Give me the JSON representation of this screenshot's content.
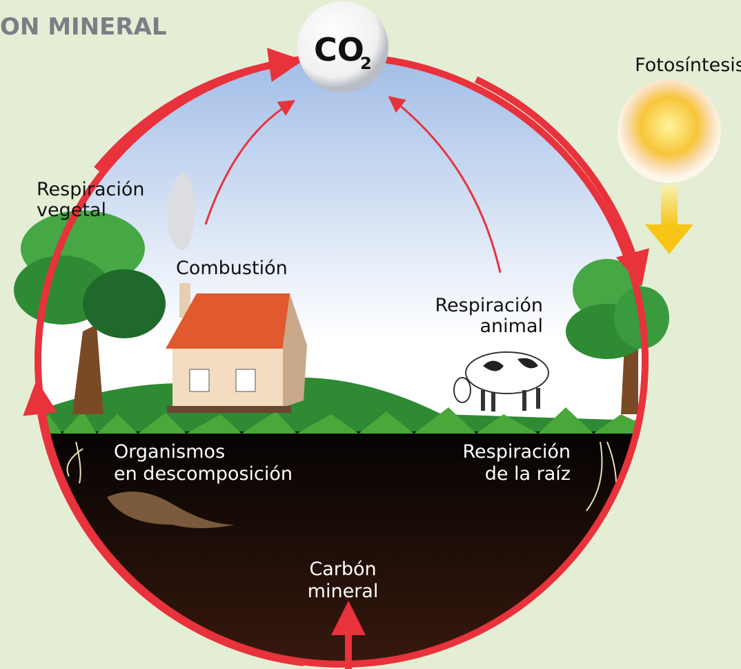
{
  "header": {
    "title": "ON MINERAL"
  },
  "co2": {
    "main": "CO",
    "subscript": "2"
  },
  "labels": {
    "photosynthesis": [
      "Fotosíntesis"
    ],
    "plant_respiration": [
      "Respiración",
      "vegetal"
    ],
    "combustion": [
      "Combustión"
    ],
    "animal_respiration": [
      "Respiración",
      "animal"
    ],
    "decomposition": [
      "Organismos",
      "en descomposición"
    ],
    "root_respiration": [
      "Respiración",
      "de la raíz"
    ],
    "mineral_carbon": [
      "Carbón",
      "mineral"
    ]
  }
}
